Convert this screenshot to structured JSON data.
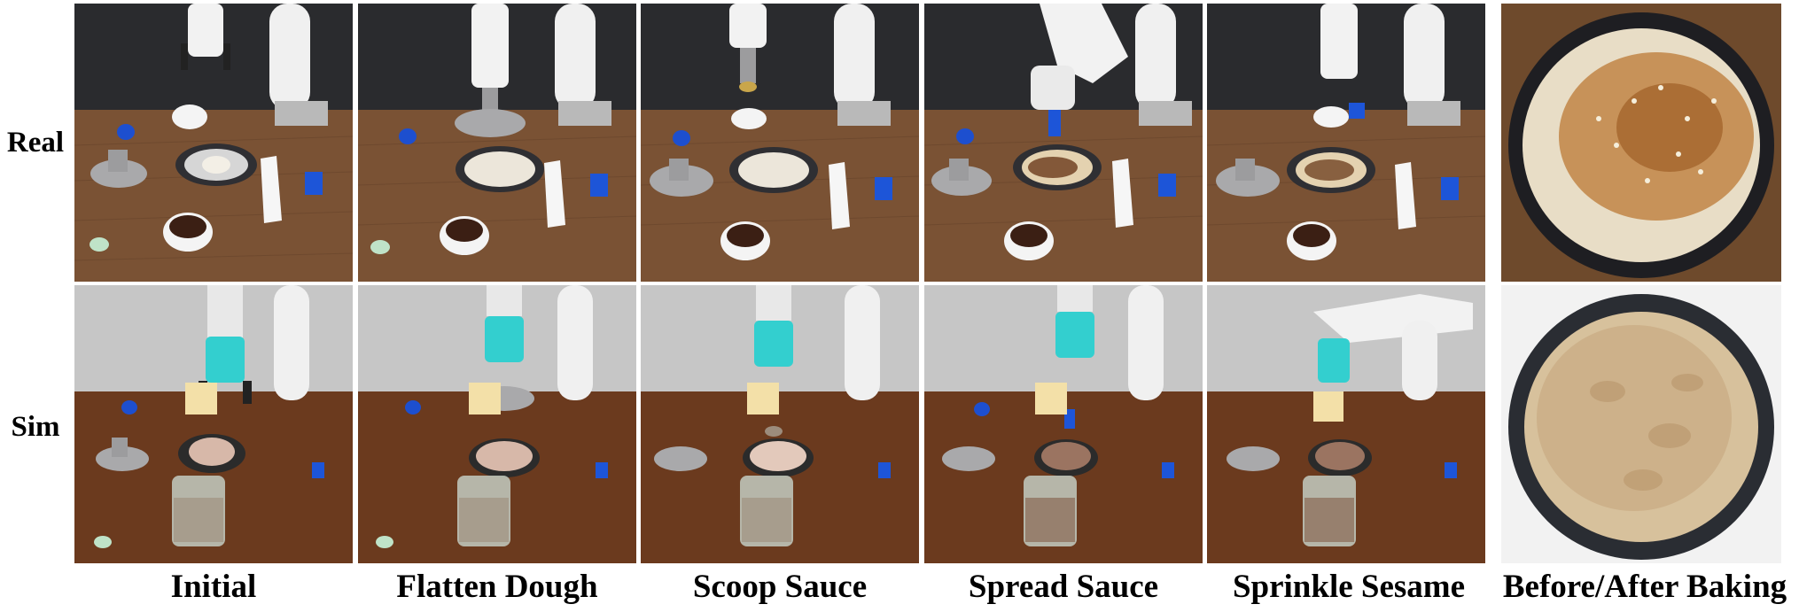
{
  "rows": [
    {
      "id": "real",
      "label": "Real"
    },
    {
      "id": "sim",
      "label": "Sim"
    }
  ],
  "columns": [
    {
      "id": "initial",
      "label": "Initial"
    },
    {
      "id": "flatten",
      "label": "Flatten Dough"
    },
    {
      "id": "scoop",
      "label": "Scoop Sauce"
    },
    {
      "id": "spread",
      "label": "Spread Sauce"
    },
    {
      "id": "sprinkle",
      "label": "Sprinkle Sesame"
    },
    {
      "id": "baking",
      "label": "Before/After Baking"
    }
  ],
  "colors": {
    "real_wall": "#2a2b2e",
    "real_table": "#7a5234",
    "sim_wall": "#c6c6c6",
    "sim_table": "#6b3a1e",
    "gripper_teal": "#33cfcf",
    "robot_white": "#f2f2f2"
  }
}
